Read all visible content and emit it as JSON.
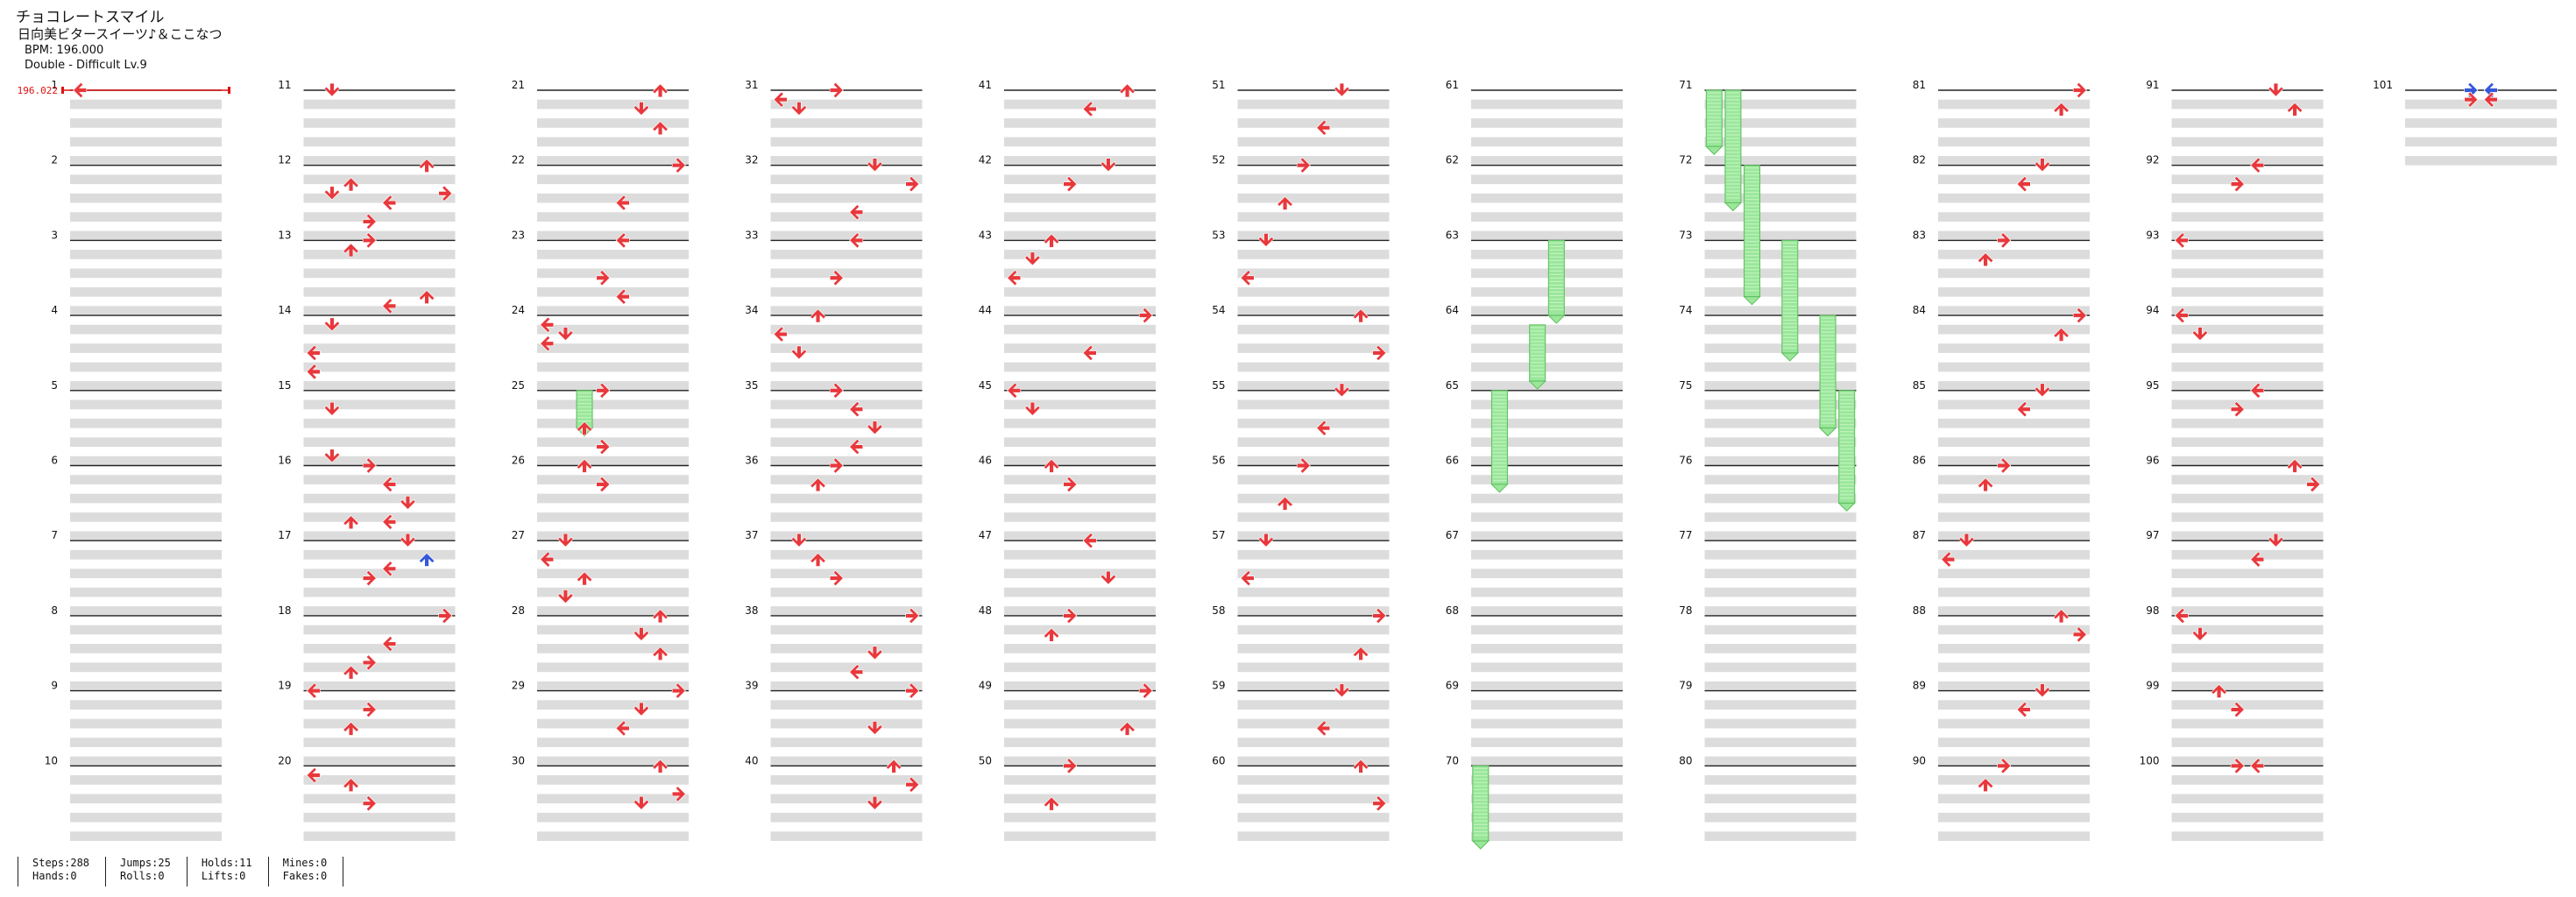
{
  "song": {
    "title": "チョコレートスマイル",
    "artist": "日向美ビタースイーツ♪＆ここなつ",
    "bpm_text": "BPM: 196.000",
    "difficulty_text": "Double - Difficult Lv.9"
  },
  "bpm_change_label": "196.022",
  "stats": {
    "steps": "Steps:288",
    "hands": "Hands:0",
    "jumps": "Jumps:25",
    "rolls": "Rolls:0",
    "holds": "Holds:11",
    "lifts": "Lifts:0",
    "mines": "Mines:0",
    "fakes": "Fakes:0"
  },
  "colors": {
    "arrow_red": "#e8383c",
    "arrow_blue": "#3557d9",
    "hold_green": "#9ae69a",
    "beat_band": "#dcdcdc",
    "measure_line": "#222222",
    "bpm_marker": "#dd1111"
  },
  "note_legend": {
    "red": "on-beat note",
    "blue": "off-beat note",
    "green": "hold body"
  },
  "measure_numbers": [
    "1",
    "2",
    "3",
    "4",
    "5",
    "6",
    "7",
    "8",
    "9",
    "10",
    "11",
    "12",
    "13",
    "14",
    "15",
    "16",
    "17",
    "18",
    "19",
    "20",
    "21",
    "22",
    "23",
    "24",
    "25",
    "26",
    "27",
    "28",
    "29",
    "30",
    "31",
    "32",
    "33",
    "34",
    "35",
    "36",
    "37",
    "38",
    "39",
    "40",
    "41",
    "42",
    "43",
    "44",
    "45",
    "46",
    "47",
    "48",
    "49",
    "50",
    "51",
    "52",
    "53",
    "54",
    "55",
    "56",
    "57",
    "58",
    "59",
    "60",
    "61",
    "62",
    "63",
    "64",
    "65",
    "66",
    "67",
    "68",
    "69",
    "70",
    "71",
    "72",
    "73",
    "74",
    "75",
    "76",
    "77",
    "78",
    "79",
    "80",
    "81",
    "82",
    "83",
    "84",
    "85",
    "86",
    "87",
    "88",
    "89",
    "90",
    "91",
    "92",
    "93",
    "94",
    "95",
    "96",
    "97",
    "98",
    "99",
    "100",
    "101"
  ],
  "notes": [
    [
      1,
      0.0,
      0,
      "r"
    ],
    [
      11,
      0.0,
      1,
      "r"
    ],
    [
      12,
      1.0,
      2,
      "r"
    ],
    [
      12,
      1.5,
      1,
      "r"
    ],
    [
      12,
      3.0,
      3,
      "r"
    ],
    [
      12,
      2.0,
      4,
      "r"
    ],
    [
      12,
      0.0,
      6,
      "r"
    ],
    [
      12,
      1.5,
      7,
      "r"
    ],
    [
      13,
      3.0,
      6,
      "r"
    ],
    [
      13,
      3.5,
      4,
      "r"
    ],
    [
      13,
      0.0,
      3,
      "r"
    ],
    [
      13,
      0.5,
      2,
      "r"
    ],
    [
      14,
      3.0,
      0,
      "r"
    ],
    [
      14,
      0.5,
      1,
      "r"
    ],
    [
      14,
      2.0,
      0,
      "r"
    ],
    [
      15,
      3.5,
      1,
      "r"
    ],
    [
      15,
      1.0,
      1,
      "r"
    ],
    [
      16,
      3.0,
      2,
      "r"
    ],
    [
      16,
      0.0,
      3,
      "r"
    ],
    [
      16,
      1.0,
      4,
      "r"
    ],
    [
      16,
      2.0,
      5,
      "r"
    ],
    [
      16,
      3.0,
      4,
      "r"
    ],
    [
      17,
      0.0,
      5,
      "r"
    ],
    [
      17,
      1.0,
      6,
      "b"
    ],
    [
      17,
      1.5,
      4,
      "r"
    ],
    [
      17,
      2.0,
      3,
      "r"
    ],
    [
      18,
      0.0,
      7,
      "r"
    ],
    [
      18,
      1.5,
      4,
      "r"
    ],
    [
      18,
      2.5,
      3,
      "r"
    ],
    [
      18,
      3.0,
      2,
      "r"
    ],
    [
      19,
      0.0,
      0,
      "r"
    ],
    [
      19,
      1.0,
      3,
      "r"
    ],
    [
      19,
      2.0,
      2,
      "r"
    ],
    [
      20,
      0.5,
      0,
      "r"
    ],
    [
      20,
      1.0,
      2,
      "r"
    ],
    [
      20,
      2.0,
      3,
      "r"
    ],
    [
      21,
      0.0,
      6,
      "r"
    ],
    [
      21,
      1.0,
      5,
      "r"
    ],
    [
      21,
      2.0,
      6,
      "r"
    ],
    [
      22,
      0.0,
      7,
      "r"
    ],
    [
      22,
      2.0,
      4,
      "r"
    ],
    [
      23,
      0.0,
      4,
      "r"
    ],
    [
      23,
      2.0,
      3,
      "r"
    ],
    [
      23,
      3.0,
      4,
      "r"
    ],
    [
      24,
      0.5,
      0,
      "r"
    ],
    [
      24,
      1.0,
      1,
      "r"
    ],
    [
      24,
      1.5,
      0,
      "r"
    ],
    [
      25,
      0.0,
      3,
      "r"
    ],
    [
      25,
      2.0,
      2,
      "r"
    ],
    [
      25,
      3.0,
      3,
      "r"
    ],
    [
      26,
      0.0,
      2,
      "r"
    ],
    [
      26,
      1.0,
      3,
      "r"
    ],
    [
      27,
      0.0,
      1,
      "r"
    ],
    [
      27,
      1.0,
      0,
      "r"
    ],
    [
      27,
      2.0,
      2,
      "r"
    ],
    [
      27,
      3.0,
      1,
      "r"
    ],
    [
      28,
      0.0,
      6,
      "r"
    ],
    [
      28,
      1.0,
      5,
      "r"
    ],
    [
      28,
      2.0,
      6,
      "r"
    ],
    [
      29,
      0.0,
      7,
      "r"
    ],
    [
      29,
      1.0,
      5,
      "r"
    ],
    [
      29,
      2.0,
      4,
      "r"
    ],
    [
      30,
      0.0,
      6,
      "r"
    ],
    [
      30,
      1.5,
      7,
      "r"
    ],
    [
      30,
      2.0,
      5,
      "r"
    ],
    [
      31,
      0.0,
      3,
      "r"
    ],
    [
      31,
      0.5,
      0,
      "r"
    ],
    [
      31,
      1.0,
      1,
      "r"
    ],
    [
      32,
      2.5,
      4,
      "r"
    ],
    [
      32,
      0.0,
      5,
      "r"
    ],
    [
      32,
      1.0,
      7,
      "r"
    ],
    [
      33,
      0.0,
      4,
      "r"
    ],
    [
      33,
      2.0,
      3,
      "r"
    ],
    [
      34,
      0.0,
      2,
      "r"
    ],
    [
      34,
      1.0,
      0,
      "r"
    ],
    [
      34,
      2.0,
      1,
      "r"
    ],
    [
      35,
      0.0,
      3,
      "r"
    ],
    [
      35,
      1.0,
      4,
      "r"
    ],
    [
      35,
      2.0,
      5,
      "r"
    ],
    [
      35,
      3.0,
      4,
      "r"
    ],
    [
      36,
      0.0,
      3,
      "r"
    ],
    [
      36,
      1.0,
      2,
      "r"
    ],
    [
      37,
      0.0,
      1,
      "r"
    ],
    [
      37,
      1.0,
      2,
      "r"
    ],
    [
      37,
      2.0,
      3,
      "r"
    ],
    [
      38,
      0.0,
      7,
      "r"
    ],
    [
      38,
      2.0,
      5,
      "r"
    ],
    [
      38,
      3.0,
      4,
      "r"
    ],
    [
      39,
      0.0,
      7,
      "r"
    ],
    [
      39,
      2.0,
      5,
      "r"
    ],
    [
      40,
      0.0,
      6,
      "r"
    ],
    [
      40,
      1.0,
      7,
      "r"
    ],
    [
      40,
      2.0,
      5,
      "r"
    ],
    [
      41,
      0.0,
      6,
      "r"
    ],
    [
      41,
      1.0,
      4,
      "r"
    ],
    [
      42,
      0.0,
      5,
      "r"
    ],
    [
      42,
      1.0,
      3,
      "r"
    ],
    [
      43,
      0.0,
      2,
      "r"
    ],
    [
      43,
      1.0,
      1,
      "r"
    ],
    [
      43,
      2.0,
      0,
      "r"
    ],
    [
      44,
      0.0,
      7,
      "r"
    ],
    [
      44,
      2.0,
      4,
      "r"
    ],
    [
      45,
      0.0,
      0,
      "r"
    ],
    [
      45,
      1.0,
      1,
      "r"
    ],
    [
      46,
      0.0,
      2,
      "r"
    ],
    [
      46,
      1.0,
      3,
      "r"
    ],
    [
      47,
      0.0,
      4,
      "r"
    ],
    [
      47,
      2.0,
      5,
      "r"
    ],
    [
      48,
      0.0,
      3,
      "r"
    ],
    [
      48,
      1.0,
      2,
      "r"
    ],
    [
      49,
      0.0,
      7,
      "r"
    ],
    [
      49,
      2.0,
      6,
      "r"
    ],
    [
      50,
      0.0,
      3,
      "r"
    ],
    [
      50,
      2.0,
      2,
      "r"
    ],
    [
      51,
      0.0,
      5,
      "r"
    ],
    [
      51,
      2.0,
      4,
      "r"
    ],
    [
      52,
      0.0,
      3,
      "r"
    ],
    [
      52,
      2.0,
      2,
      "r"
    ],
    [
      53,
      0.0,
      1,
      "r"
    ],
    [
      53,
      2.0,
      0,
      "r"
    ],
    [
      54,
      0.0,
      6,
      "r"
    ],
    [
      54,
      2.0,
      7,
      "r"
    ],
    [
      55,
      0.0,
      5,
      "r"
    ],
    [
      55,
      2.0,
      4,
      "r"
    ],
    [
      56,
      0.0,
      3,
      "r"
    ],
    [
      56,
      2.0,
      2,
      "r"
    ],
    [
      57,
      0.0,
      1,
      "r"
    ],
    [
      57,
      2.0,
      0,
      "r"
    ],
    [
      58,
      0.0,
      7,
      "r"
    ],
    [
      58,
      2.0,
      6,
      "r"
    ],
    [
      59,
      0.0,
      5,
      "r"
    ],
    [
      59,
      2.0,
      4,
      "r"
    ],
    [
      60,
      0.0,
      6,
      "r"
    ],
    [
      60,
      2.0,
      7,
      "r"
    ],
    [
      81,
      0.0,
      7,
      "r"
    ],
    [
      81,
      1.0,
      6,
      "r"
    ],
    [
      82,
      0.0,
      5,
      "r"
    ],
    [
      82,
      1.0,
      4,
      "r"
    ],
    [
      83,
      0.0,
      3,
      "r"
    ],
    [
      83,
      1.0,
      2,
      "r"
    ],
    [
      84,
      0.0,
      7,
      "r"
    ],
    [
      84,
      1.0,
      6,
      "r"
    ],
    [
      85,
      0.0,
      5,
      "r"
    ],
    [
      85,
      1.0,
      4,
      "r"
    ],
    [
      86,
      0.0,
      3,
      "r"
    ],
    [
      86,
      1.0,
      2,
      "r"
    ],
    [
      87,
      0.0,
      1,
      "r"
    ],
    [
      87,
      1.0,
      0,
      "r"
    ],
    [
      88,
      0.0,
      6,
      "r"
    ],
    [
      88,
      1.0,
      7,
      "r"
    ],
    [
      89,
      0.0,
      5,
      "r"
    ],
    [
      89,
      1.0,
      4,
      "r"
    ],
    [
      90,
      0.0,
      3,
      "r"
    ],
    [
      90,
      1.0,
      2,
      "r"
    ],
    [
      91,
      0.0,
      5,
      "r"
    ],
    [
      91,
      1.0,
      6,
      "r"
    ],
    [
      92,
      0.0,
      4,
      "r"
    ],
    [
      92,
      1.0,
      3,
      "r"
    ],
    [
      93,
      0.0,
      0,
      "r"
    ],
    [
      94,
      0.0,
      0,
      "r"
    ],
    [
      94,
      1.0,
      1,
      "r"
    ],
    [
      95,
      0.0,
      4,
      "r"
    ],
    [
      95,
      1.0,
      3,
      "r"
    ],
    [
      96,
      0.0,
      6,
      "r"
    ],
    [
      96,
      1.0,
      7,
      "r"
    ],
    [
      97,
      0.0,
      5,
      "r"
    ],
    [
      97,
      1.0,
      4,
      "r"
    ],
    [
      98,
      0.0,
      0,
      "r"
    ],
    [
      98,
      1.0,
      1,
      "r"
    ],
    [
      99,
      0.0,
      2,
      "r"
    ],
    [
      99,
      1.0,
      3,
      "r"
    ],
    [
      100,
      0.0,
      3,
      "r"
    ],
    [
      100,
      0.0,
      4,
      "r"
    ],
    [
      101,
      0.0,
      3,
      "b"
    ],
    [
      101,
      0.0,
      4,
      "b"
    ],
    [
      101,
      0.5,
      3,
      "r"
    ],
    [
      101,
      0.5,
      4,
      "r"
    ]
  ],
  "holds": [
    [
      25,
      0.0,
      2,
      2.0
    ],
    [
      63,
      0.0,
      4,
      4.0
    ],
    [
      64,
      0.5,
      3,
      3.0
    ],
    [
      65,
      0.0,
      1,
      5.0
    ],
    [
      70,
      0.0,
      0,
      4.0
    ],
    [
      71,
      0.0,
      0,
      3.0
    ],
    [
      71,
      0.0,
      1,
      6.0
    ],
    [
      72,
      0.0,
      2,
      7.0
    ],
    [
      73,
      0.0,
      4,
      6.0
    ],
    [
      74,
      0.0,
      6,
      6.0
    ],
    [
      75,
      0.0,
      7,
      6.0
    ]
  ]
}
